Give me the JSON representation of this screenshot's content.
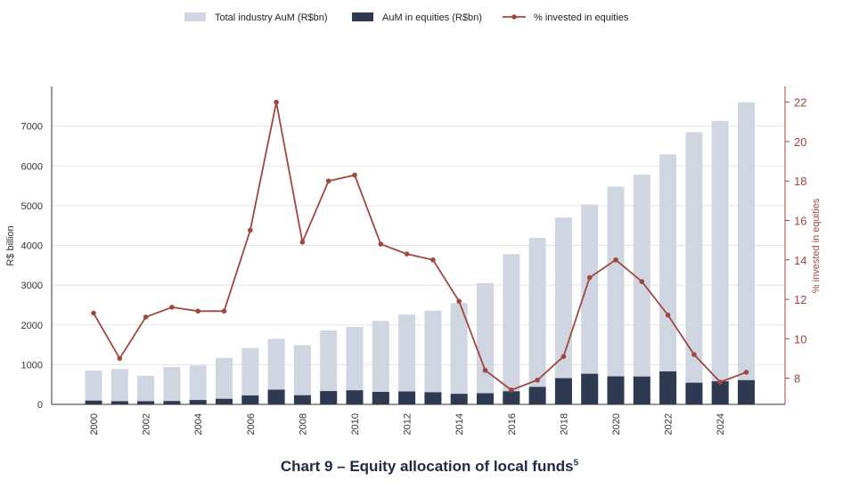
{
  "chart_data": {
    "type": "bar",
    "x": [
      2000,
      2001,
      2002,
      2003,
      2004,
      2005,
      2006,
      2007,
      2008,
      2009,
      2010,
      2011,
      2012,
      2013,
      2014,
      2015,
      2016,
      2017,
      2018,
      2019,
      2020,
      2021,
      2022,
      2023,
      2024,
      2025
    ],
    "x_tick_labels": [
      "2000",
      "2002",
      "2004",
      "2006",
      "2008",
      "2010",
      "2012",
      "2014",
      "2016",
      "2018",
      "2020",
      "2022",
      "2024"
    ],
    "series": [
      {
        "name": "Total industry AuM (R$bn)",
        "type": "bar",
        "axis": "left",
        "color": "#cfd6e2",
        "values": [
          850,
          890,
          720,
          940,
          980,
          1170,
          1420,
          1650,
          1490,
          1860,
          1950,
          2100,
          2260,
          2360,
          2550,
          3050,
          3780,
          4190,
          4700,
          5030,
          5480,
          5780,
          6290,
          6850,
          7130,
          7600
        ]
      },
      {
        "name": "AuM in equities (R$bn)",
        "type": "bar",
        "axis": "left",
        "color": "#2e3a52",
        "values": [
          95,
          80,
          80,
          85,
          110,
          140,
          225,
          370,
          230,
          335,
          355,
          315,
          325,
          305,
          265,
          280,
          330,
          440,
          660,
          770,
          705,
          700,
          830,
          545,
          580,
          610
        ]
      },
      {
        "name": "% invested in equities",
        "type": "line",
        "axis": "right",
        "color": "#a0473f",
        "values": [
          11.3,
          9.0,
          11.1,
          11.6,
          11.4,
          11.4,
          15.5,
          22.0,
          14.9,
          18.0,
          18.3,
          14.8,
          14.3,
          14.0,
          11.9,
          8.4,
          7.4,
          7.9,
          9.1,
          13.1,
          14.0,
          12.9,
          11.2,
          9.2,
          7.8,
          8.3
        ]
      }
    ],
    "ylabel": "R$ billion",
    "ylabel_right": "% invested in equities",
    "ylim": [
      0,
      8000
    ],
    "yticks": [
      0,
      1000,
      2000,
      3000,
      4000,
      5000,
      6000,
      7000
    ],
    "ylim_right": [
      6.67,
      22.8
    ],
    "yticks_right": [
      8,
      10,
      12,
      14,
      16,
      18,
      20,
      22
    ],
    "grid": "horizontal",
    "legend_position": "top-center"
  },
  "caption": {
    "text": "Chart 9 – Equity allocation of local funds",
    "footnote": "5"
  }
}
